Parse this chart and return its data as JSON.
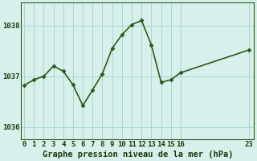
{
  "x": [
    0,
    1,
    2,
    3,
    4,
    5,
    6,
    7,
    8,
    9,
    10,
    11,
    12,
    13,
    14,
    15,
    16,
    23
  ],
  "y": [
    1036.82,
    1036.93,
    1037.0,
    1037.2,
    1037.1,
    1036.83,
    1036.42,
    1036.73,
    1037.05,
    1037.55,
    1037.82,
    1038.02,
    1038.1,
    1037.62,
    1036.88,
    1036.93,
    1037.07,
    1037.52
  ],
  "line_color": "#2d5a1b",
  "marker": "D",
  "marker_size": 2.5,
  "bg_color": "#d8f0ec",
  "grid_color": "#a8d8d0",
  "title": "Graphe pression niveau de la mer (hPa)",
  "yticks": [
    1036,
    1037,
    1038
  ],
  "xticks": [
    0,
    1,
    2,
    3,
    4,
    5,
    6,
    7,
    8,
    9,
    10,
    11,
    12,
    13,
    14,
    15,
    16,
    23
  ],
  "xlim": [
    -0.3,
    23.5
  ],
  "ylim": [
    1035.75,
    1038.45
  ],
  "title_color": "#1a3a0a",
  "title_fontsize": 7.5,
  "tick_fontsize": 6.5,
  "tick_color": "#1a3a0a",
  "border_color": "#2d5a1b",
  "linewidth": 1.2
}
